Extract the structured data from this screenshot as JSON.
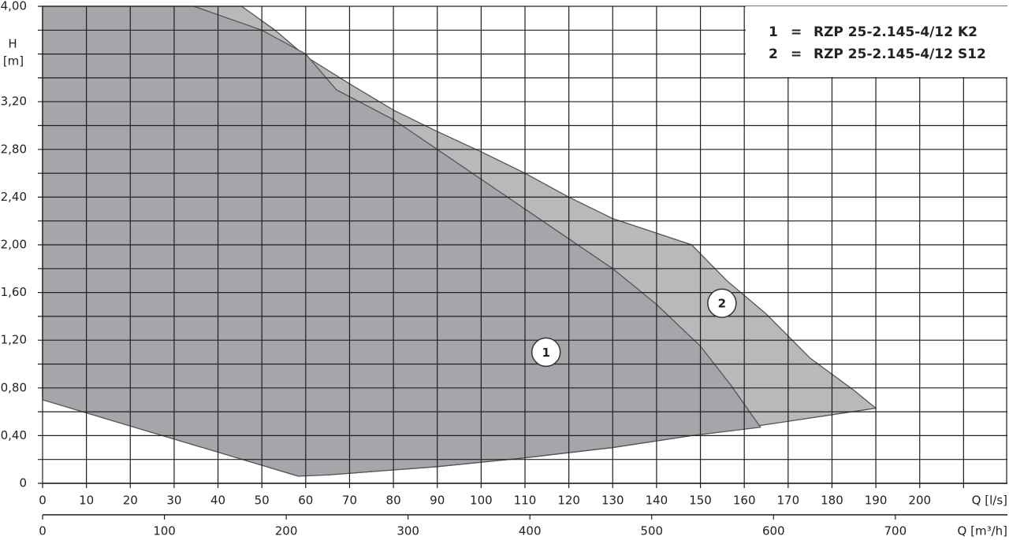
{
  "chart_data": {
    "type": "area",
    "xlim": [
      0,
      220
    ],
    "xticks": [
      0,
      10,
      20,
      30,
      40,
      50,
      60,
      70,
      80,
      90,
      100,
      110,
      120,
      130,
      140,
      150,
      160,
      170,
      180,
      190,
      200
    ],
    "xminorticks": [
      210
    ],
    "x_label": "Q [l/s]",
    "x2lim": [
      0,
      792
    ],
    "x2ticks": [
      0,
      100,
      200,
      300,
      400,
      500,
      600,
      700
    ],
    "x2_label": "Q [m³/h]",
    "ylim": [
      0,
      4
    ],
    "yticks": [
      {
        "value": 0,
        "label": "0"
      },
      {
        "value": 0.4,
        "label": "0,40"
      },
      {
        "value": 0.8,
        "label": "0,80"
      },
      {
        "value": 1.2,
        "label": "1,20"
      },
      {
        "value": 1.6,
        "label": "1,60"
      },
      {
        "value": 2.0,
        "label": "2,00"
      },
      {
        "value": 2.4,
        "label": "2,40"
      },
      {
        "value": 2.8,
        "label": "2,80"
      },
      {
        "value": 3.2,
        "label": "3,20"
      },
      {
        "value": 4.0,
        "label": "4,00"
      }
    ],
    "yminorticks": [
      0.2,
      0.6,
      1.0,
      1.4,
      1.8,
      2.2,
      2.6,
      3.0,
      3.4,
      3.6,
      3.8
    ],
    "y_label": "H",
    "y_unit": "[m]",
    "grid": true,
    "series": [
      {
        "name": "RZP 25-2.145-4/12 S12",
        "key": "2",
        "color": "#b9b9bb",
        "x": [
          0,
          45.4,
          53,
          60,
          70,
          80,
          90,
          100,
          110,
          120,
          130,
          148,
          156,
          165,
          175,
          185,
          190,
          170,
          148,
          130,
          109,
          90,
          65,
          0
        ],
        "values": [
          4.0,
          4.0,
          3.8,
          3.58,
          3.35,
          3.13,
          2.95,
          2.78,
          2.6,
          2.4,
          2.22,
          2.0,
          1.7,
          1.42,
          1.05,
          0.78,
          0.63,
          0.52,
          0.4,
          0.3,
          0.21,
          0.14,
          0.07,
          0.73
        ],
        "marker": {
          "label": "2",
          "x": 154.9,
          "y": 1.51
        }
      },
      {
        "name": "RZP 25-2.145-4/12 K2",
        "key": "1",
        "color": "#a6a6aa",
        "x": [
          0,
          34.5,
          50,
          60,
          67,
          80,
          90,
          100,
          110,
          120,
          130,
          140,
          150,
          157,
          163.7,
          148,
          130,
          109,
          90,
          65,
          58.3,
          0
        ],
        "values": [
          4.0,
          4.0,
          3.8,
          3.6,
          3.3,
          3.05,
          2.8,
          2.55,
          2.3,
          2.05,
          1.8,
          1.5,
          1.15,
          0.82,
          0.47,
          0.4,
          0.3,
          0.21,
          0.14,
          0.07,
          0.06,
          0.7
        ],
        "marker": {
          "label": "1",
          "x": 114.8,
          "y": 1.1
        }
      }
    ],
    "legend_separator": "="
  }
}
